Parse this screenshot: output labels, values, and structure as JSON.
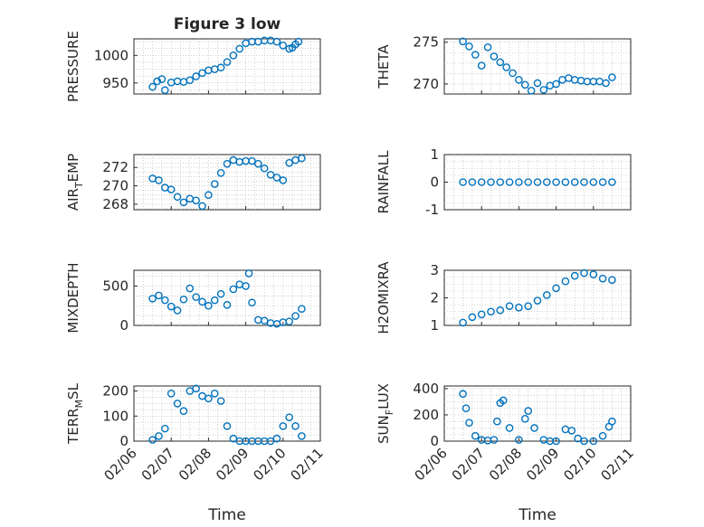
{
  "figure": {
    "title": "Figure 3 low",
    "xlabel": "Time",
    "marker_color": "#0072BD",
    "xticks": [
      "02/06",
      "02/07",
      "02/08",
      "02/09",
      "02/10",
      "02/11"
    ],
    "xlim": [
      "02/06",
      "02/11"
    ]
  },
  "chart_data": [
    {
      "type": "scatter",
      "ylabel": "PRESSURE",
      "ylim": [
        930,
        1030
      ],
      "yticks": [
        950,
        1000
      ],
      "ytick_labels": [
        "950",
        "1000"
      ],
      "grid": true,
      "x": [
        "02/06 12:00",
        "02/06 15:00",
        "02/06 18:00",
        "02/06 20:00",
        "02/07 00:00",
        "02/07 04:00",
        "02/07 08:00",
        "02/07 12:00",
        "02/07 16:00",
        "02/07 20:00",
        "02/08 00:00",
        "02/08 04:00",
        "02/08 08:00",
        "02/08 12:00",
        "02/08 16:00",
        "02/08 20:00",
        "02/09 00:00",
        "02/09 04:00",
        "02/09 08:00",
        "02/09 12:00",
        "02/09 16:00",
        "02/09 20:00",
        "02/10 00:00",
        "02/10 04:00",
        "02/10 06:00",
        "02/10 08:00",
        "02/10 10:00"
      ],
      "values": [
        943,
        953,
        957,
        937,
        951,
        953,
        952,
        955,
        962,
        968,
        973,
        975,
        978,
        988,
        1000,
        1012,
        1022,
        1025,
        1025,
        1027,
        1027,
        1025,
        1018,
        1012,
        1014,
        1020,
        1025
      ]
    },
    {
      "type": "scatter",
      "ylabel": "THETA",
      "ylim": [
        268.8,
        275.4
      ],
      "yticks": [
        270,
        275
      ],
      "ytick_labels": [
        "270",
        "275"
      ],
      "grid": true,
      "x": [
        "02/06 12:00",
        "02/06 16:00",
        "02/06 20:00",
        "02/07 00:00",
        "02/07 04:00",
        "02/07 08:00",
        "02/07 12:00",
        "02/07 16:00",
        "02/07 20:00",
        "02/08 00:00",
        "02/08 04:00",
        "02/08 08:00",
        "02/08 12:00",
        "02/08 16:00",
        "02/08 20:00",
        "02/09 00:00",
        "02/09 04:00",
        "02/09 08:00",
        "02/09 12:00",
        "02/09 16:00",
        "02/09 20:00",
        "02/10 00:00",
        "02/10 04:00",
        "02/10 08:00",
        "02/10 12:00"
      ],
      "values": [
        275.1,
        274.5,
        273.5,
        272.2,
        274.4,
        273.3,
        272.6,
        272.0,
        271.3,
        270.5,
        269.9,
        269.2,
        270.1,
        269.3,
        269.8,
        270.0,
        270.5,
        270.7,
        270.5,
        270.4,
        270.3,
        270.3,
        270.3,
        270.1,
        270.8
      ]
    },
    {
      "type": "scatter",
      "ylabel": "AIR_TEMP",
      "ylim": [
        267.4,
        273.4
      ],
      "yticks": [
        268,
        270,
        272
      ],
      "ytick_labels": [
        "268",
        "270",
        "272"
      ],
      "grid": true,
      "x": [
        "02/06 12:00",
        "02/06 16:00",
        "02/06 20:00",
        "02/07 00:00",
        "02/07 04:00",
        "02/07 08:00",
        "02/07 12:00",
        "02/07 16:00",
        "02/07 20:00",
        "02/08 00:00",
        "02/08 04:00",
        "02/08 08:00",
        "02/08 12:00",
        "02/08 16:00",
        "02/08 20:00",
        "02/09 00:00",
        "02/09 04:00",
        "02/09 08:00",
        "02/09 12:00",
        "02/09 16:00",
        "02/09 20:00",
        "02/10 00:00",
        "02/10 04:00",
        "02/10 08:00",
        "02/10 12:00"
      ],
      "values": [
        270.8,
        270.6,
        269.8,
        269.6,
        268.8,
        268.2,
        268.6,
        268.4,
        267.8,
        269.0,
        270.2,
        271.4,
        272.4,
        272.8,
        272.6,
        272.7,
        272.7,
        272.4,
        271.9,
        271.2,
        270.9,
        270.6,
        272.5,
        272.8,
        273.0
      ]
    },
    {
      "type": "scatter",
      "ylabel": "RAINFALL",
      "ylim": [
        -1,
        1
      ],
      "yticks": [
        -1,
        0,
        1
      ],
      "ytick_labels": [
        "-1",
        "0",
        "1"
      ],
      "grid": true,
      "x": [
        "02/06 12:00",
        "02/06 18:00",
        "02/07 00:00",
        "02/07 06:00",
        "02/07 12:00",
        "02/07 18:00",
        "02/08 00:00",
        "02/08 06:00",
        "02/08 12:00",
        "02/08 18:00",
        "02/09 00:00",
        "02/09 06:00",
        "02/09 12:00",
        "02/09 18:00",
        "02/10 00:00",
        "02/10 06:00",
        "02/10 12:00"
      ],
      "values": [
        0,
        0,
        0,
        0,
        0,
        0,
        0,
        0,
        0,
        0,
        0,
        0,
        0,
        0,
        0,
        0,
        0
      ]
    },
    {
      "type": "scatter",
      "ylabel": "MIXDEPTH",
      "ylim": [
        0,
        700
      ],
      "yticks": [
        0,
        500
      ],
      "ytick_labels": [
        "0",
        "500"
      ],
      "grid": true,
      "x": [
        "02/06 12:00",
        "02/06 16:00",
        "02/06 20:00",
        "02/07 00:00",
        "02/07 04:00",
        "02/07 08:00",
        "02/07 12:00",
        "02/07 16:00",
        "02/07 20:00",
        "02/08 00:00",
        "02/08 04:00",
        "02/08 08:00",
        "02/08 12:00",
        "02/08 16:00",
        "02/08 20:00",
        "02/09 00:00",
        "02/09 02:00",
        "02/09 04:00",
        "02/09 08:00",
        "02/09 12:00",
        "02/09 16:00",
        "02/09 20:00",
        "02/10 00:00",
        "02/10 04:00",
        "02/10 08:00",
        "02/10 12:00"
      ],
      "values": [
        340,
        380,
        320,
        240,
        190,
        330,
        470,
        360,
        300,
        250,
        320,
        400,
        260,
        460,
        520,
        500,
        660,
        290,
        70,
        60,
        30,
        20,
        40,
        50,
        120,
        210
      ]
    },
    {
      "type": "scatter",
      "ylabel": "H2OMIXRA",
      "ylim": [
        1,
        3
      ],
      "yticks": [
        1,
        2,
        3
      ],
      "ytick_labels": [
        "1",
        "2",
        "3"
      ],
      "grid": true,
      "x": [
        "02/06 12:00",
        "02/06 18:00",
        "02/07 00:00",
        "02/07 06:00",
        "02/07 12:00",
        "02/07 18:00",
        "02/08 00:00",
        "02/08 06:00",
        "02/08 12:00",
        "02/08 18:00",
        "02/09 00:00",
        "02/09 06:00",
        "02/09 12:00",
        "02/09 18:00",
        "02/10 00:00",
        "02/10 06:00",
        "02/10 12:00"
      ],
      "values": [
        1.1,
        1.3,
        1.4,
        1.5,
        1.55,
        1.7,
        1.65,
        1.7,
        1.9,
        2.1,
        2.35,
        2.6,
        2.8,
        2.9,
        2.85,
        2.7,
        2.65
      ]
    },
    {
      "type": "scatter",
      "ylabel": "TERR_MSL",
      "ylim": [
        0,
        220
      ],
      "yticks": [
        0,
        100,
        200
      ],
      "ytick_labels": [
        "0",
        "100",
        "200"
      ],
      "grid": true,
      "x": [
        "02/06 12:00",
        "02/06 16:00",
        "02/06 20:00",
        "02/07 00:00",
        "02/07 04:00",
        "02/07 08:00",
        "02/07 12:00",
        "02/07 16:00",
        "02/07 20:00",
        "02/08 00:00",
        "02/08 04:00",
        "02/08 08:00",
        "02/08 12:00",
        "02/08 16:00",
        "02/08 20:00",
        "02/09 00:00",
        "02/09 04:00",
        "02/09 08:00",
        "02/09 12:00",
        "02/09 16:00",
        "02/09 20:00",
        "02/10 00:00",
        "02/10 04:00",
        "02/10 08:00",
        "02/10 12:00"
      ],
      "values": [
        5,
        20,
        50,
        190,
        150,
        120,
        200,
        210,
        180,
        170,
        190,
        160,
        60,
        10,
        0,
        0,
        0,
        0,
        0,
        0,
        10,
        60,
        95,
        60,
        20
      ]
    },
    {
      "type": "scatter",
      "ylabel": "SUN_FLUX",
      "ylim": [
        0,
        420
      ],
      "yticks": [
        0,
        200,
        400
      ],
      "ytick_labels": [
        "0",
        "200",
        "400"
      ],
      "grid": true,
      "x": [
        "02/06 12:00",
        "02/06 14:00",
        "02/06 16:00",
        "02/06 20:00",
        "02/07 00:00",
        "02/07 04:00",
        "02/07 08:00",
        "02/07 10:00",
        "02/07 12:00",
        "02/07 14:00",
        "02/07 18:00",
        "02/08 00:00",
        "02/08 04:00",
        "02/08 06:00",
        "02/08 10:00",
        "02/08 16:00",
        "02/08 20:00",
        "02/09 00:00",
        "02/09 06:00",
        "02/09 10:00",
        "02/09 14:00",
        "02/09 18:00",
        "02/10 00:00",
        "02/10 06:00",
        "02/10 10:00",
        "02/10 12:00"
      ],
      "values": [
        360,
        250,
        140,
        40,
        10,
        5,
        10,
        150,
        290,
        310,
        100,
        10,
        170,
        230,
        100,
        10,
        0,
        0,
        90,
        80,
        20,
        0,
        0,
        40,
        110,
        150
      ]
    }
  ]
}
